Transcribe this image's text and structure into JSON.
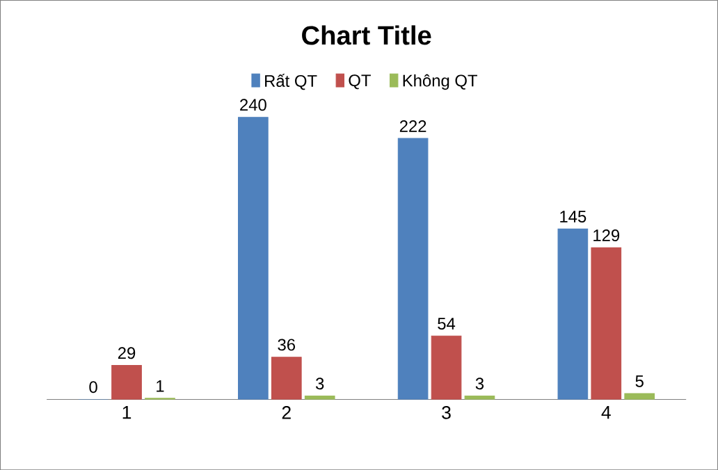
{
  "chart_data": {
    "type": "bar",
    "title": "Chart Title",
    "categories": [
      "1",
      "2",
      "3",
      "4"
    ],
    "series": [
      {
        "name": "Rất QT",
        "color": "#4f81bd",
        "values": [
          0,
          240,
          222,
          145
        ]
      },
      {
        "name": "QT",
        "color": "#c0504d",
        "values": [
          29,
          36,
          54,
          129
        ]
      },
      {
        "name": "Không QT",
        "color": "#9bbb59",
        "values": [
          1,
          3,
          3,
          5
        ]
      }
    ],
    "data_labels": true,
    "legend": "top"
  }
}
